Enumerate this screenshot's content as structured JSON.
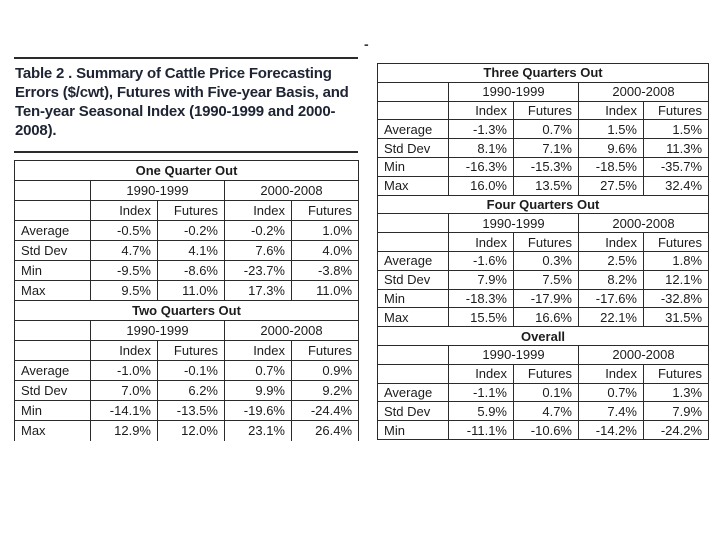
{
  "top_dash": "-",
  "caption": "Table 2 .  Summary of Cattle Price Forecasting Errors ($/cwt), Futures with Five-year Basis, and Ten-year Seasonal Index (1990-1999 and 2000-2008).",
  "colors": {
    "ink": "#1c1c1c",
    "caption_ink": "#1e2433",
    "border": "#2b2b2b"
  },
  "headers": {
    "periods": [
      "1990-1999",
      "2000-2008"
    ],
    "cols": [
      "Index",
      "Futures"
    ]
  },
  "tables": [
    {
      "title": "One Quarter Out",
      "rows": [
        {
          "label": "Average",
          "values": [
            "-0.5%",
            "-0.2%",
            "-0.2%",
            "1.0%"
          ]
        },
        {
          "label": "Std Dev",
          "values": [
            "4.7%",
            "4.1%",
            "7.6%",
            "4.0%"
          ]
        },
        {
          "label": "Min",
          "values": [
            "-9.5%",
            "-8.6%",
            "-23.7%",
            "-3.8%"
          ]
        },
        {
          "label": "Max",
          "values": [
            "9.5%",
            "11.0%",
            "17.3%",
            "11.0%"
          ]
        }
      ]
    },
    {
      "title": "Two Quarters Out",
      "rows": [
        {
          "label": "Average",
          "values": [
            "-1.0%",
            "-0.1%",
            "0.7%",
            "0.9%"
          ]
        },
        {
          "label": "Std Dev",
          "values": [
            "7.0%",
            "6.2%",
            "9.9%",
            "9.2%"
          ]
        },
        {
          "label": "Min",
          "values": [
            "-14.1%",
            "-13.5%",
            "-19.6%",
            "-24.4%"
          ]
        },
        {
          "label": "Max",
          "values": [
            "12.9%",
            "12.0%",
            "23.1%",
            "26.4%"
          ]
        }
      ]
    },
    {
      "title": "Three Quarters Out",
      "rows": [
        {
          "label": "Average",
          "values": [
            "-1.3%",
            "0.7%",
            "1.5%",
            "1.5%"
          ]
        },
        {
          "label": "Std Dev",
          "values": [
            "8.1%",
            "7.1%",
            "9.6%",
            "11.3%"
          ]
        },
        {
          "label": "Min",
          "values": [
            "-16.3%",
            "-15.3%",
            "-18.5%",
            "-35.7%"
          ]
        },
        {
          "label": "Max",
          "values": [
            "16.0%",
            "13.5%",
            "27.5%",
            "32.4%"
          ]
        }
      ]
    },
    {
      "title": "Four Quarters Out",
      "rows": [
        {
          "label": "Average",
          "values": [
            "-1.6%",
            "0.3%",
            "2.5%",
            "1.8%"
          ]
        },
        {
          "label": "Std Dev",
          "values": [
            "7.9%",
            "7.5%",
            "8.2%",
            "12.1%"
          ]
        },
        {
          "label": "Min",
          "values": [
            "-18.3%",
            "-17.9%",
            "-17.6%",
            "-32.8%"
          ]
        },
        {
          "label": "Max",
          "values": [
            "15.5%",
            "16.6%",
            "22.1%",
            "31.5%"
          ]
        }
      ]
    },
    {
      "title": "Overall",
      "rows": [
        {
          "label": "Average",
          "values": [
            "-1.1%",
            "0.1%",
            "0.7%",
            "1.3%"
          ]
        },
        {
          "label": "Std Dev",
          "values": [
            "5.9%",
            "4.7%",
            "7.4%",
            "7.9%"
          ]
        },
        {
          "label": "Min",
          "values": [
            "-11.1%",
            "-10.6%",
            "-14.2%",
            "-24.2%"
          ]
        }
      ]
    }
  ]
}
